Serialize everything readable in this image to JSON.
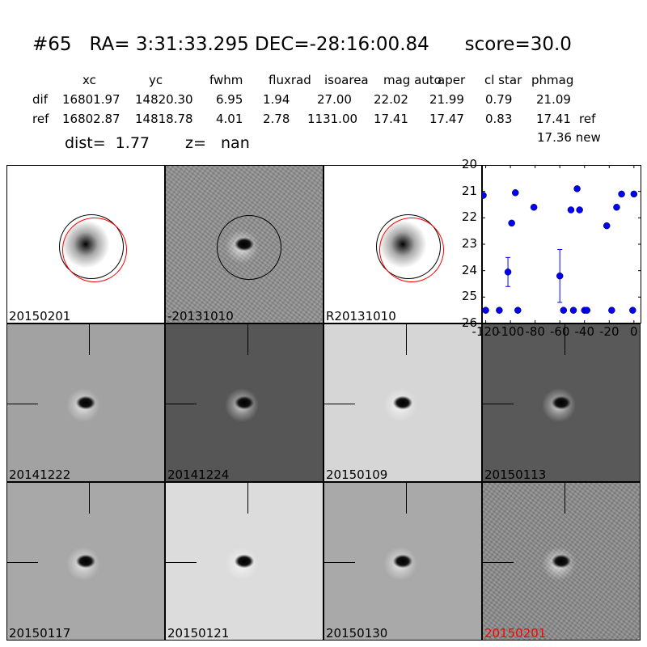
{
  "header": {
    "title": "#65   RA= 3:31:33.295 DEC=-28:16:00.84      score=30.0"
  },
  "table": {
    "columns": [
      "xc",
      "yc",
      "fwhm",
      "fluxrad",
      "isoarea",
      "mag auto",
      "aper",
      "cl star",
      "phmag"
    ],
    "rows": [
      {
        "label": "dif",
        "values": [
          "16801.97",
          "14820.30",
          "6.95",
          "1.94",
          "27.00",
          "22.02",
          "21.99",
          "0.79",
          "21.09"
        ],
        "suffix": ""
      },
      {
        "label": "ref",
        "values": [
          "16802.87",
          "14818.78",
          "4.01",
          "2.78",
          "1131.00",
          "17.41",
          "17.47",
          "0.83",
          "17.41"
        ],
        "suffix": "ref"
      }
    ],
    "extra": "17.36 new",
    "dist": "dist=  1.77",
    "z": "z=   nan"
  },
  "panels": [
    {
      "label": "20150201",
      "bg": "#ffffff",
      "style": "ref",
      "color": "#000000"
    },
    {
      "label": "-20131010",
      "bg": "#8f8f8f",
      "style": "noisy",
      "color": "#000000"
    },
    {
      "label": "R20131010",
      "bg": "#ffffff",
      "style": "ref",
      "color": "#000000"
    },
    {
      "label": "20141222",
      "bg": "#a2a2a2",
      "style": "diff",
      "color": "#000000"
    },
    {
      "label": "20141224",
      "bg": "#565656",
      "style": "diff",
      "color": "#000000"
    },
    {
      "label": "20150109",
      "bg": "#d6d6d6",
      "style": "diff",
      "color": "#000000"
    },
    {
      "label": "20150113",
      "bg": "#595959",
      "style": "diff",
      "color": "#000000"
    },
    {
      "label": "20150117",
      "bg": "#a8a8a8",
      "style": "diff",
      "color": "#000000"
    },
    {
      "label": "20150121",
      "bg": "#dcdcdc",
      "style": "diff",
      "color": "#000000"
    },
    {
      "label": "20150130",
      "bg": "#a9a9a9",
      "style": "diff",
      "color": "#000000"
    },
    {
      "label": "20150201",
      "bg": "#8a8a8a",
      "style": "noisydiff",
      "color": "#ff0000"
    }
  ],
  "chart_data": {
    "type": "scatter",
    "xlim": [
      -123,
      6
    ],
    "ylim": [
      26,
      20
    ],
    "y_inverted": true,
    "xticks": [
      "-120",
      "-100",
      "-80",
      "-60",
      "-40",
      "-20",
      "0"
    ],
    "xtick_values": [
      -120,
      -100,
      -80,
      -60,
      -40,
      -20,
      0
    ],
    "yticks": [
      "20",
      "21",
      "22",
      "23",
      "24",
      "25",
      "26"
    ],
    "marker_color": "#0000ff",
    "points": [
      {
        "x": -122,
        "y": 21.15
      },
      {
        "x": -120,
        "y": 25.5
      },
      {
        "x": -109,
        "y": 25.5
      },
      {
        "x": -102,
        "y": 24.05,
        "err": 0.55
      },
      {
        "x": -99,
        "y": 22.2
      },
      {
        "x": -96,
        "y": 21.05
      },
      {
        "x": -94,
        "y": 25.5
      },
      {
        "x": -81,
        "y": 21.6
      },
      {
        "x": -60,
        "y": 24.2,
        "err": 1.0
      },
      {
        "x": -57,
        "y": 25.5
      },
      {
        "x": -51,
        "y": 21.7
      },
      {
        "x": -49,
        "y": 25.5
      },
      {
        "x": -46,
        "y": 20.9
      },
      {
        "x": -44,
        "y": 21.7
      },
      {
        "x": -40,
        "y": 25.5
      },
      {
        "x": -38,
        "y": 25.5
      },
      {
        "x": -22,
        "y": 22.3
      },
      {
        "x": -18,
        "y": 25.5
      },
      {
        "x": -14,
        "y": 21.6
      },
      {
        "x": -10,
        "y": 21.1
      },
      {
        "x": -1,
        "y": 25.5
      },
      {
        "x": 0,
        "y": 21.1
      }
    ]
  }
}
